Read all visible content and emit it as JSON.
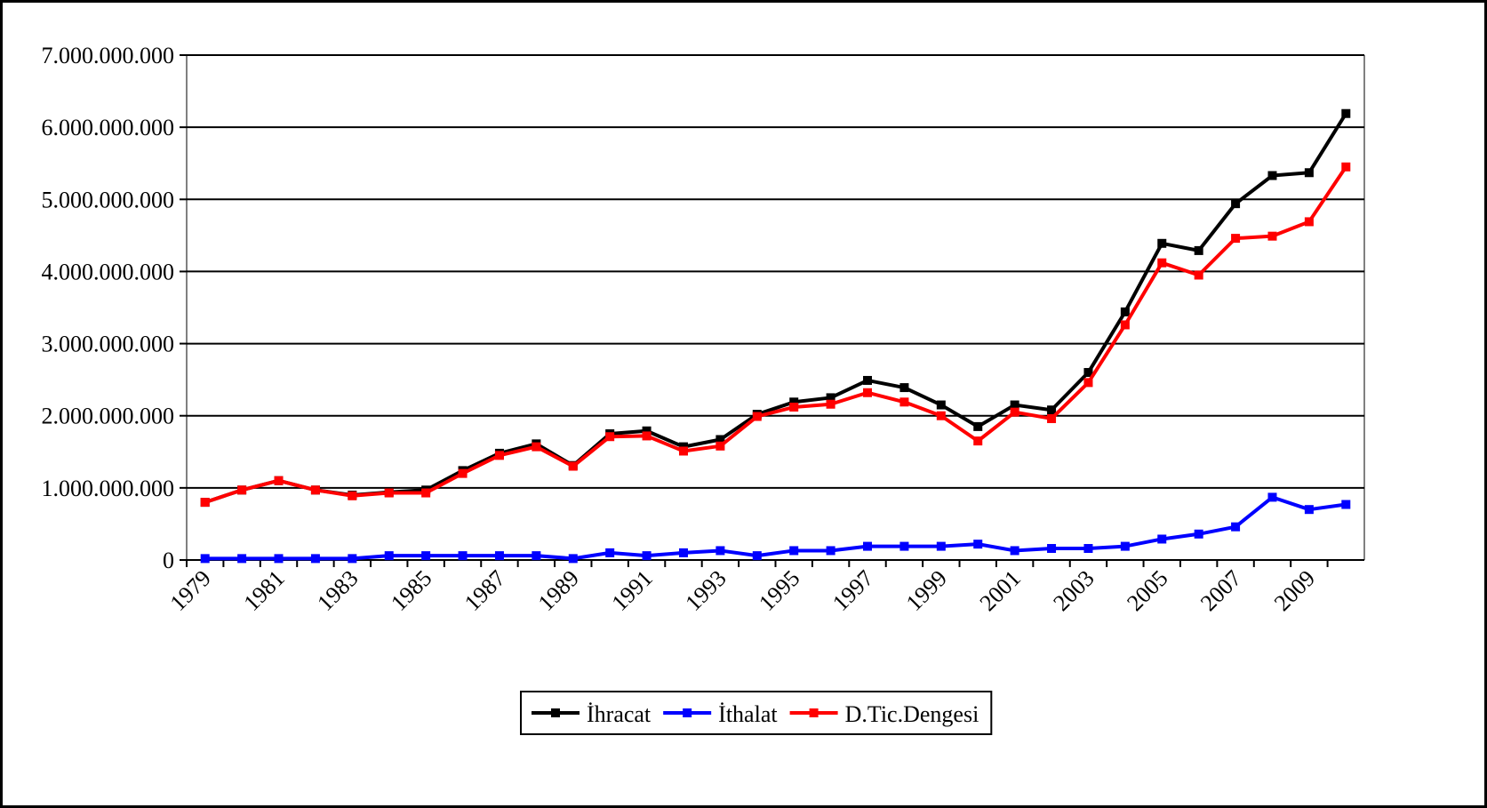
{
  "chart_data": {
    "type": "line",
    "categories": [
      "1979",
      null,
      "1981",
      null,
      "1983",
      null,
      "1985",
      null,
      "1987",
      null,
      "1989",
      null,
      "1991",
      null,
      "1993",
      null,
      "1995",
      null,
      "1997",
      null,
      "1999",
      null,
      "2001",
      null,
      "2003",
      null,
      "2005",
      null,
      "2007",
      null,
      "2009",
      null
    ],
    "series": [
      {
        "name": "İhracat",
        "color": "#000000",
        "values": [
          800000000,
          970000000,
          1100000000,
          970000000,
          900000000,
          940000000,
          970000000,
          1240000000,
          1480000000,
          1610000000,
          1310000000,
          1750000000,
          1790000000,
          1570000000,
          1670000000,
          2020000000,
          2190000000,
          2250000000,
          2490000000,
          2390000000,
          2150000000,
          1850000000,
          2150000000,
          2080000000,
          2600000000,
          3440000000,
          4390000000,
          4290000000,
          4940000000,
          5330000000,
          5370000000,
          6190000000
        ]
      },
      {
        "name": "İthalat",
        "color": "#0000ff",
        "values": [
          20000000,
          20000000,
          20000000,
          20000000,
          20000000,
          60000000,
          60000000,
          60000000,
          60000000,
          60000000,
          20000000,
          100000000,
          60000000,
          100000000,
          130000000,
          60000000,
          130000000,
          130000000,
          190000000,
          190000000,
          190000000,
          220000000,
          130000000,
          160000000,
          160000000,
          190000000,
          290000000,
          360000000,
          460000000,
          870000000,
          700000000,
          770000000
        ]
      },
      {
        "name": "D.Tic.Dengesi",
        "color": "#ff0000",
        "values": [
          800000000,
          970000000,
          1100000000,
          970000000,
          890000000,
          930000000,
          930000000,
          1200000000,
          1450000000,
          1570000000,
          1300000000,
          1710000000,
          1720000000,
          1510000000,
          1580000000,
          1990000000,
          2120000000,
          2160000000,
          2320000000,
          2190000000,
          2000000000,
          1650000000,
          2050000000,
          1960000000,
          2460000000,
          3260000000,
          4120000000,
          3950000000,
          4460000000,
          4490000000,
          4690000000,
          5450000000
        ]
      }
    ],
    "ylim": [
      0,
      7000000000
    ],
    "yticks": [
      0,
      {
        "value": 1000000000,
        "label": "1.000.000.000"
      },
      {
        "value": 2000000000,
        "label": "2.000.000.000"
      },
      {
        "value": 3000000000,
        "label": "3.000.000.000"
      },
      {
        "value": 4000000000,
        "label": "4.000.000.000"
      },
      {
        "value": 5000000000,
        "label": "5.000.000.000"
      },
      {
        "value": 6000000000,
        "label": "6.000.000.000"
      },
      {
        "value": 7000000000,
        "label": "7.000.000.000"
      }
    ],
    "grid": true,
    "legend": "bottom"
  }
}
